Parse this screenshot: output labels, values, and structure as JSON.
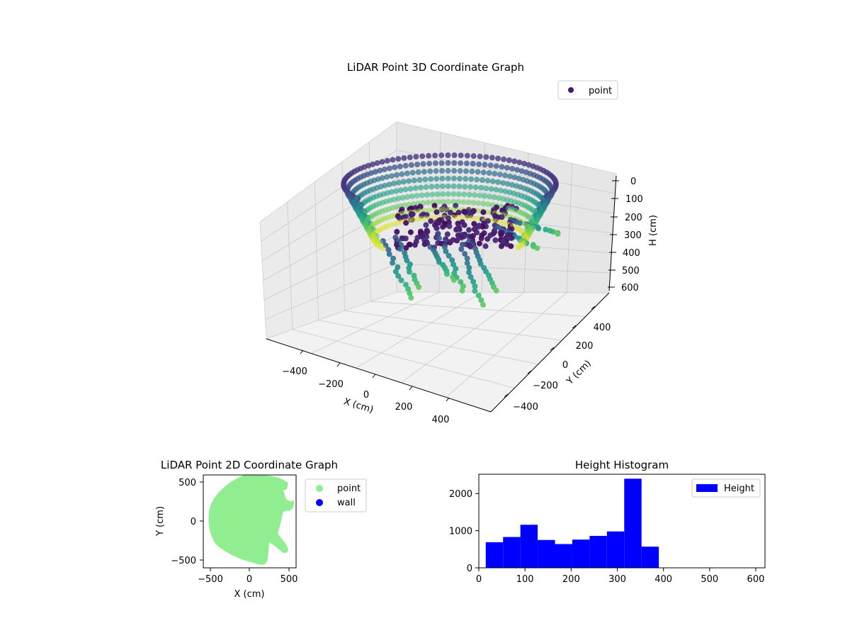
{
  "chart_data": [
    {
      "type": "scatter",
      "projection": "3d",
      "title": "LiDAR Point 3D Coordinate Graph",
      "xlabel": "X (cm)",
      "ylabel": "Y (cm)",
      "zlabel": "H (cm)",
      "x_ticks": [
        "−400",
        "−200",
        "0",
        "200",
        "400"
      ],
      "y_ticks": [
        "−400",
        "−200",
        "0",
        "200",
        "400"
      ],
      "z_ticks": [
        "0",
        "100",
        "200",
        "300",
        "400",
        "500",
        "600"
      ],
      "xlim": [
        -550,
        550
      ],
      "ylim": [
        -550,
        550
      ],
      "zlim": [
        0,
        620
      ],
      "z_inverted": true,
      "colormap": "viridis",
      "series": [
        {
          "name": "point"
        }
      ],
      "legend": "top-right",
      "grid": true
    },
    {
      "type": "scatter",
      "title": "LiDAR Point 2D Coordinate Graph",
      "xlabel": "X (cm)",
      "ylabel": "Y (cm)",
      "x_ticks": [
        "−500",
        "0",
        "500"
      ],
      "y_ticks": [
        "−500",
        "0",
        "500"
      ],
      "xlim": [
        -580,
        580
      ],
      "ylim": [
        -580,
        580
      ],
      "series": [
        {
          "name": "point",
          "color": "#90ee90"
        },
        {
          "name": "wall",
          "color": "#0000ff"
        }
      ],
      "legend": "outside-right",
      "grid": false
    },
    {
      "type": "bar",
      "title": "Height Histogram",
      "series": [
        {
          "name": "Height",
          "color": "#0000ff"
        }
      ],
      "bin_edges": [
        15,
        52.5,
        90,
        127.5,
        165,
        202.5,
        240,
        277.5,
        315,
        352.5,
        390
      ],
      "values": [
        690,
        830,
        1160,
        750,
        640,
        760,
        860,
        980,
        2400,
        570
      ],
      "x_ticks": [
        "0",
        "100",
        "200",
        "300",
        "400",
        "500",
        "600"
      ],
      "y_ticks": [
        "0",
        "1000",
        "2000"
      ],
      "xlim": [
        0,
        620
      ],
      "ylim": [
        0,
        2520
      ],
      "legend": "top-right",
      "grid": false
    }
  ]
}
